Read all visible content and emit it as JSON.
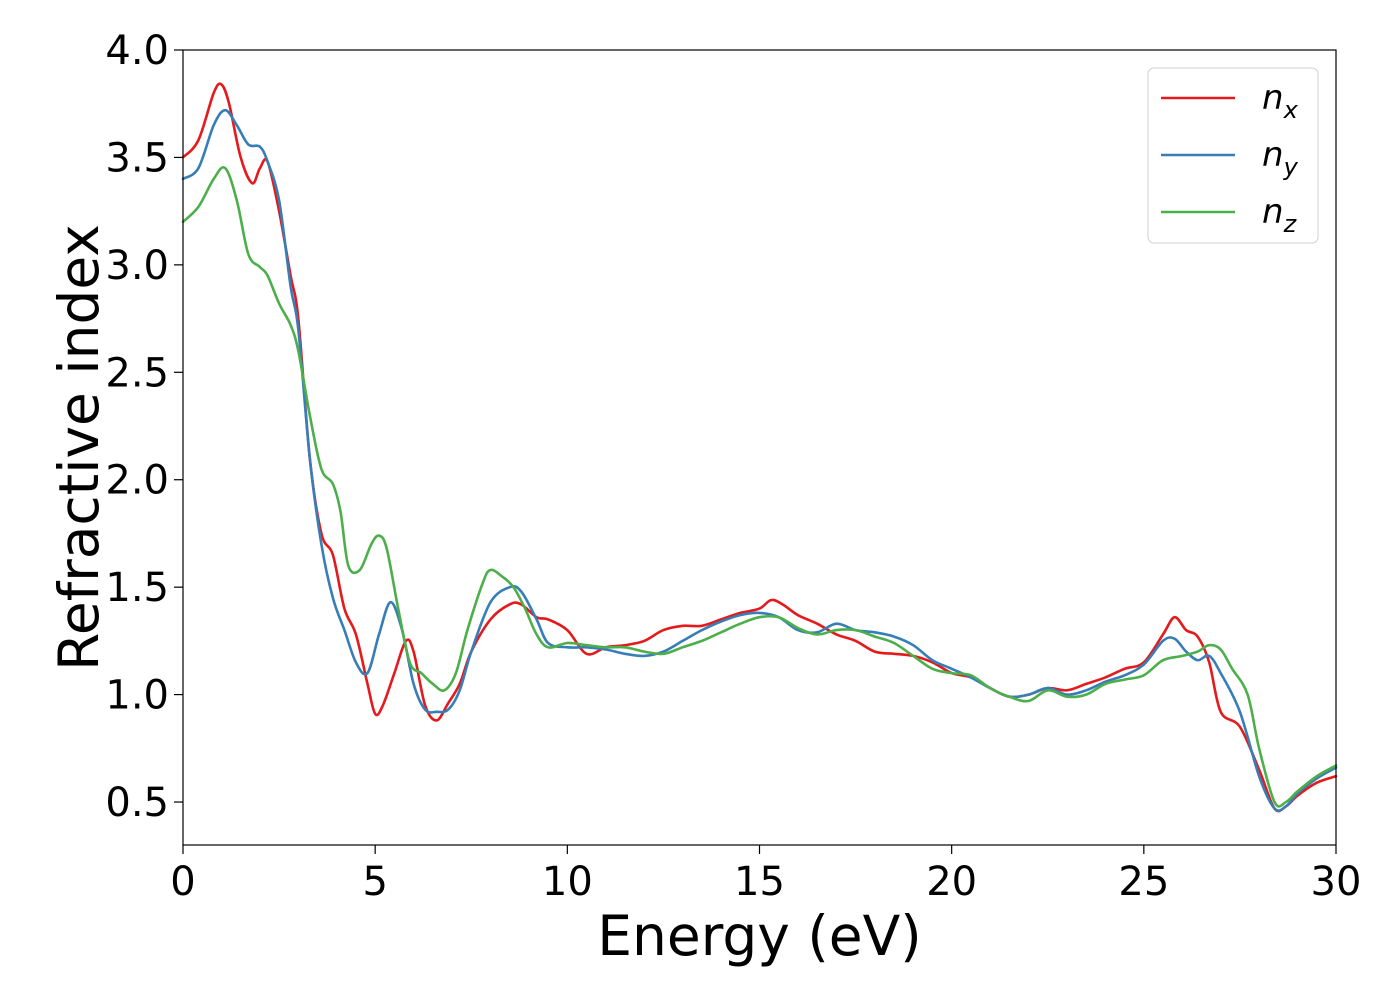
{
  "chart_data": {
    "type": "line",
    "title": "",
    "xlabel": "Energy (eV)",
    "ylabel": "Refractive index",
    "xlim": [
      0,
      30
    ],
    "ylim": [
      0.3,
      4.0
    ],
    "xticks": [
      0,
      5,
      10,
      15,
      20,
      25,
      30
    ],
    "xtick_labels": [
      "0",
      "5",
      "10",
      "15",
      "20",
      "25",
      "30"
    ],
    "yticks": [
      0.5,
      1.0,
      1.5,
      2.0,
      2.5,
      3.0,
      3.5,
      4.0
    ],
    "ytick_labels": [
      "0.5",
      "1.0",
      "1.5",
      "2.0",
      "2.5",
      "3.0",
      "3.5",
      "4.0"
    ],
    "grid": false,
    "legend_position": "top-right",
    "series": [
      {
        "name": "n",
        "subscript": "x",
        "color": "#e41a1c",
        "x": [
          0,
          0.4,
          0.8,
          1.0,
          1.2,
          1.5,
          1.8,
          2.0,
          2.2,
          2.5,
          2.8,
          3.0,
          3.3,
          3.6,
          3.9,
          4.2,
          4.5,
          4.8,
          5.0,
          5.2,
          5.5,
          5.8,
          6.0,
          6.3,
          6.6,
          6.9,
          7.2,
          7.5,
          8.0,
          8.5,
          8.8,
          9.2,
          9.5,
          10.0,
          10.5,
          11.0,
          11.5,
          12.0,
          12.5,
          13.0,
          13.5,
          14.0,
          14.5,
          15.0,
          15.3,
          15.6,
          16.0,
          16.5,
          17.0,
          17.5,
          18.0,
          18.5,
          19.0,
          19.5,
          20.0,
          20.5,
          21.0,
          21.5,
          22.0,
          22.5,
          23.0,
          23.5,
          24.0,
          24.5,
          25.0,
          25.5,
          25.8,
          26.1,
          26.4,
          26.7,
          27.0,
          27.5,
          28.0,
          28.4,
          28.7,
          29.0,
          29.5,
          30.0
        ],
        "y": [
          3.5,
          3.58,
          3.8,
          3.84,
          3.75,
          3.5,
          3.38,
          3.45,
          3.48,
          3.25,
          2.95,
          2.75,
          2.1,
          1.75,
          1.65,
          1.4,
          1.28,
          1.05,
          0.91,
          0.95,
          1.1,
          1.25,
          1.2,
          0.95,
          0.88,
          0.96,
          1.05,
          1.2,
          1.35,
          1.42,
          1.42,
          1.36,
          1.35,
          1.3,
          1.19,
          1.22,
          1.23,
          1.25,
          1.3,
          1.32,
          1.32,
          1.35,
          1.38,
          1.4,
          1.44,
          1.42,
          1.37,
          1.33,
          1.28,
          1.25,
          1.2,
          1.19,
          1.18,
          1.15,
          1.1,
          1.08,
          1.03,
          0.99,
          1.0,
          1.03,
          1.02,
          1.05,
          1.08,
          1.12,
          1.15,
          1.28,
          1.36,
          1.3,
          1.27,
          1.15,
          0.92,
          0.85,
          0.65,
          0.47,
          0.48,
          0.53,
          0.59,
          0.62
        ]
      },
      {
        "name": "n",
        "subscript": "y",
        "color": "#377eb8",
        "x": [
          0,
          0.4,
          0.8,
          1.1,
          1.4,
          1.7,
          2.0,
          2.2,
          2.5,
          2.8,
          3.0,
          3.3,
          3.6,
          3.9,
          4.2,
          4.5,
          4.8,
          5.1,
          5.4,
          5.7,
          6.0,
          6.3,
          6.6,
          6.9,
          7.2,
          7.5,
          8.0,
          8.5,
          8.8,
          9.2,
          9.5,
          10.0,
          10.5,
          11.0,
          11.5,
          12.0,
          12.5,
          13.0,
          13.5,
          14.0,
          14.5,
          15.0,
          15.5,
          16.0,
          16.5,
          17.0,
          17.5,
          18.0,
          18.5,
          19.0,
          19.5,
          20.0,
          20.5,
          21.0,
          21.5,
          22.0,
          22.5,
          23.0,
          23.5,
          24.0,
          24.5,
          25.0,
          25.5,
          25.8,
          26.1,
          26.4,
          26.7,
          27.0,
          27.5,
          28.0,
          28.4,
          28.7,
          29.0,
          29.5,
          30.0
        ],
        "y": [
          3.4,
          3.45,
          3.65,
          3.72,
          3.65,
          3.56,
          3.55,
          3.48,
          3.3,
          2.9,
          2.7,
          2.1,
          1.7,
          1.45,
          1.3,
          1.15,
          1.1,
          1.28,
          1.43,
          1.3,
          1.05,
          0.93,
          0.92,
          0.93,
          1.02,
          1.2,
          1.43,
          1.5,
          1.48,
          1.35,
          1.24,
          1.22,
          1.22,
          1.21,
          1.19,
          1.18,
          1.2,
          1.25,
          1.3,
          1.34,
          1.37,
          1.38,
          1.36,
          1.3,
          1.29,
          1.33,
          1.3,
          1.29,
          1.27,
          1.23,
          1.16,
          1.12,
          1.08,
          1.03,
          0.99,
          1.0,
          1.03,
          1.0,
          1.02,
          1.06,
          1.09,
          1.14,
          1.25,
          1.26,
          1.2,
          1.16,
          1.18,
          1.1,
          0.92,
          0.62,
          0.47,
          0.48,
          0.54,
          0.61,
          0.66
        ]
      },
      {
        "name": "n",
        "subscript": "z",
        "color": "#4daf4a",
        "x": [
          0,
          0.4,
          0.8,
          1.1,
          1.4,
          1.7,
          2.0,
          2.2,
          2.5,
          2.8,
          3.0,
          3.3,
          3.6,
          3.9,
          4.1,
          4.3,
          4.6,
          4.9,
          5.1,
          5.3,
          5.6,
          5.9,
          6.2,
          6.5,
          6.8,
          7.1,
          7.4,
          7.8,
          8.0,
          8.3,
          8.6,
          8.9,
          9.2,
          9.5,
          10.0,
          10.5,
          11.0,
          11.5,
          12.0,
          12.5,
          13.0,
          13.5,
          14.0,
          14.5,
          15.0,
          15.5,
          16.0,
          16.5,
          17.0,
          17.5,
          18.0,
          18.5,
          19.0,
          19.5,
          20.0,
          20.5,
          21.0,
          21.5,
          22.0,
          22.5,
          23.0,
          23.5,
          24.0,
          24.5,
          25.0,
          25.5,
          26.0,
          26.4,
          26.7,
          27.0,
          27.3,
          27.7,
          28.0,
          28.4,
          28.7,
          29.0,
          29.5,
          30.0
        ],
        "y": [
          3.2,
          3.27,
          3.4,
          3.45,
          3.3,
          3.05,
          2.99,
          2.95,
          2.82,
          2.72,
          2.6,
          2.3,
          2.05,
          1.98,
          1.85,
          1.6,
          1.58,
          1.7,
          1.74,
          1.68,
          1.4,
          1.15,
          1.1,
          1.05,
          1.02,
          1.1,
          1.3,
          1.52,
          1.58,
          1.55,
          1.5,
          1.4,
          1.28,
          1.22,
          1.24,
          1.23,
          1.22,
          1.22,
          1.2,
          1.19,
          1.22,
          1.25,
          1.29,
          1.33,
          1.36,
          1.36,
          1.31,
          1.28,
          1.3,
          1.3,
          1.27,
          1.24,
          1.18,
          1.12,
          1.1,
          1.09,
          1.03,
          0.99,
          0.97,
          1.02,
          0.99,
          1.0,
          1.05,
          1.07,
          1.09,
          1.16,
          1.18,
          1.2,
          1.23,
          1.21,
          1.12,
          1.0,
          0.75,
          0.5,
          0.5,
          0.55,
          0.62,
          0.67
        ]
      }
    ]
  }
}
